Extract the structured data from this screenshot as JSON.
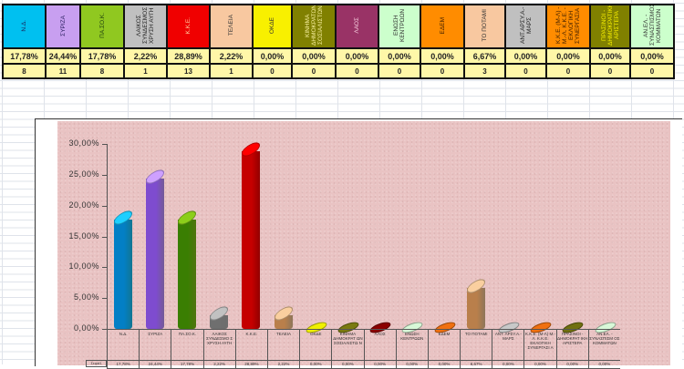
{
  "table": {
    "parties": [
      {
        "name": "Ν.Δ.",
        "percent": "17,78%",
        "seats": "8",
        "color": "#00c0f0",
        "text_color": "#1a2a60",
        "width": 45
      },
      {
        "name": "ΣΥΡΙΖΑ",
        "percent": "24,44%",
        "seats": "11",
        "color": "#c89ff0",
        "text_color": "#2a2060",
        "width": 36
      },
      {
        "name": "ΠΑ.ΣΟ.Κ.",
        "percent": "17,78%",
        "seats": "8",
        "color": "#90c820",
        "text_color": "#1a3a10",
        "width": 46
      },
      {
        "name": "ΛΑΙΚΟΣ ΣΥΝΔΕΣΜΟΣ ΧΡΥΣΗ ΑΥΓΗ",
        "percent": "2,22%",
        "seats": "1",
        "color": "#c0c0c0",
        "text_color": "#222222",
        "width": 45
      },
      {
        "name": "Κ.Κ.Ε.",
        "percent": "28,89%",
        "seats": "13",
        "color": "#f00000",
        "text_color": "#ffd0a0",
        "width": 45
      },
      {
        "name": "ΤΕΛΕΙΑ",
        "percent": "2,22%",
        "seats": "1",
        "color": "#f8c8a0",
        "text_color": "#333333",
        "width": 45
      },
      {
        "name": "ΟΚΔΕ",
        "percent": "0,00%",
        "seats": "0",
        "color": "#f8f000",
        "text_color": "#333333",
        "width": 41
      },
      {
        "name": "ΚΙΝΗΜΑ ΔΗΜΟΚΡΑΤΩΝ ΣΟΣΙΑΛΙΣΤΩΝ",
        "percent": "0,00%",
        "seats": "0",
        "color": "#808000",
        "text_color": "#f8f0a0",
        "width": 46
      },
      {
        "name": "ΛΑΟΣ",
        "percent": "0,00%",
        "seats": "0",
        "color": "#993366",
        "text_color": "#f8d0e0",
        "width": 45
      },
      {
        "name": "ΕΝΩΣΗ ΚΕΝΤΡΩΩΝ",
        "percent": "0,00%",
        "seats": "0",
        "color": "#ccffcc",
        "text_color": "#333333",
        "width": 44
      },
      {
        "name": "ΕΔΕΜ",
        "percent": "0,00%",
        "seats": "0",
        "color": "#ff8c00",
        "text_color": "#402000",
        "width": 46
      },
      {
        "name": "ΤΟ ΠΟΤΑΜΙ",
        "percent": "6,67%",
        "seats": "3",
        "color": "#f8c8a0",
        "text_color": "#333333",
        "width": 43
      },
      {
        "name": "ΑΝΤ.ΑΡΣΥ.Α.-ΜΑΡΣ",
        "percent": "0,00%",
        "seats": "0",
        "color": "#c0c0c0",
        "text_color": "#222222",
        "width": 43
      },
      {
        "name": "Κ.Κ.Ε. (Μ-Λ) - Μ.-Λ. Κ.Κ.Ε. - ΕΚΛΟΓΙΚΗ ΣΥΝΕΡΓΑΣΙΑ",
        "percent": "0,00%",
        "seats": "0",
        "color": "#ff8c00",
        "text_color": "#402000",
        "width": 46
      },
      {
        "name": "ΠΡΑΣΙΝΟΙ - ΔΗΜΟΚΡΑΤΙΚΗ ΑΡΙΣΤΕΡΑ",
        "percent": "0,00%",
        "seats": "0",
        "color": "#808000",
        "text_color": "#f8f000",
        "width": 42
      },
      {
        "name": "ΑΝ.ΕΛ. - ΣΥΝΑΣΠΙΣΜΟΣ ΚΟΜΜΑΤΩΝ",
        "percent": "0,00%",
        "seats": "0",
        "color": "#ccffcc",
        "text_color": "#333333",
        "width": 46
      }
    ]
  },
  "chart_data": {
    "type": "bar",
    "title": "",
    "xlabel": "",
    "ylabel": "",
    "ylim": [
      0,
      30
    ],
    "yticks": [
      "0,00%",
      "5,00%",
      "10,00%",
      "15,00%",
      "20,00%",
      "25,00%",
      "30,00%"
    ],
    "grid": false,
    "legend": {
      "position": "data-table",
      "entries": [
        "Σειρά1"
      ]
    },
    "categories": [
      "Ν.Δ.",
      "ΣΥΡΙΖΑ",
      "ΠΑ.ΣΟ.Κ.",
      "ΛΑΙΚΟΣ ΣΥΝΔΕΣΜΟΣ ΧΡΥΣΗ ΑΥΓΗ",
      "Κ.Κ.Ε.",
      "ΤΕΛΕΙΑ",
      "ΟΚΔΕ",
      "ΚΙΝΗΜΑ ΔΗΜΟΚΡΑΤΩΝ ΣΟΣΙΑΛΙΣΤΩΝ",
      "ΛΑΟΣ",
      "ΕΝΩΣΗ ΚΕΝΤΡΩΩΝ",
      "ΕΔΕΜ",
      "ΤΟ ΠΟΤΑΜΙ",
      "ΑΝΤ.ΑΡΣΥ.Α.-ΜΑΡΣ",
      "Κ.Κ.Ε. (Μ-Λ) Μ.-Λ. Κ.Κ.Ε. ΕΚΛΟΓΙΚΗ ΣΥΝΕΡΓΑΣΙΑ",
      "ΠΡΑΣΙΝΟΙ - ΔΗΜΟΚΡΑΤΙΚΗ ΑΡΙΣΤΕΡΑ",
      "ΑΝ.ΕΛ. - ΣΥΝΑΣΠΙΣΜΟΣ ΚΟΜΜΑΤΩΝ"
    ],
    "series": [
      {
        "name": "Σειρά1",
        "values": [
          17.78,
          24.44,
          17.78,
          2.22,
          28.89,
          2.22,
          0,
          0,
          0,
          0,
          0,
          6.67,
          0,
          0,
          0,
          0
        ],
        "labels": [
          "17,78%",
          "24,44%",
          "17,78%",
          "2,22%",
          "28,89%",
          "2,22%",
          "0,00%",
          "0,00%",
          "0,00%",
          "0,00%",
          "0,00%",
          "6,67%",
          "0,00%",
          "0,00%",
          "0,00%",
          "0,00%"
        ],
        "colors": [
          "#1ab4e0",
          "#b38be6",
          "#7ab317",
          "#a8a8a8",
          "#e00000",
          "#d9b48a",
          "#f0f000",
          "#7a7a10",
          "#8b0000",
          "#d8f8d8",
          "#f07010",
          "#d9b48a",
          "#c8c8c8",
          "#f07010",
          "#707010",
          "#d8f8d8"
        ]
      }
    ],
    "cat_labels_short": [
      "Ν.Δ.",
      "ΣΥΡΙΖΑ",
      "ΠΑ.ΣΟ.Κ.",
      "ΛΑΙΚΟΣ ΣΥΝΔΕΣΜΟ Σ ΧΡΥΣΗ ΑΥΓΗ",
      "Κ.Κ.Ε.",
      "ΤΕΛΕΙΑ",
      "ΟΚΔΕ",
      "ΚΙΝΗΜΑ ΔΗΜΟΚΡΑΤ ΩΝ ΣΟΣΙΑΛΙΣΤΩ Ν",
      "ΛΑΟΣ",
      "ΕΝΩΣΗ ΚΕΝΤΡΩΩΝ",
      "ΕΔΕΜ",
      "ΤΟ ΠΟΤΑΜΙ",
      "ΑΝΤ. ΑΡΣΥ.Α.- ΜΑΡΣ",
      "Κ.Κ.Ε. (Μ-Λ) Μ.-Λ. Κ.Κ.Ε. ΕΚΛΟΓΙΚΗ ΣΥΝΕΡΓΑΣΙ Α",
      "ΠΡΑΣΙΝΟΙ - ΔΗΜΟΚΡΑΤ ΙΚΗ ΑΡΙΣΤΕΡΑ",
      "ΑΝ.ΕΛ. - ΣΥΝΑΣΠΙΣΜ ΟΣ ΚΟΜΜΑΤΩΝ"
    ],
    "series_key_label": "Σειρά1"
  }
}
